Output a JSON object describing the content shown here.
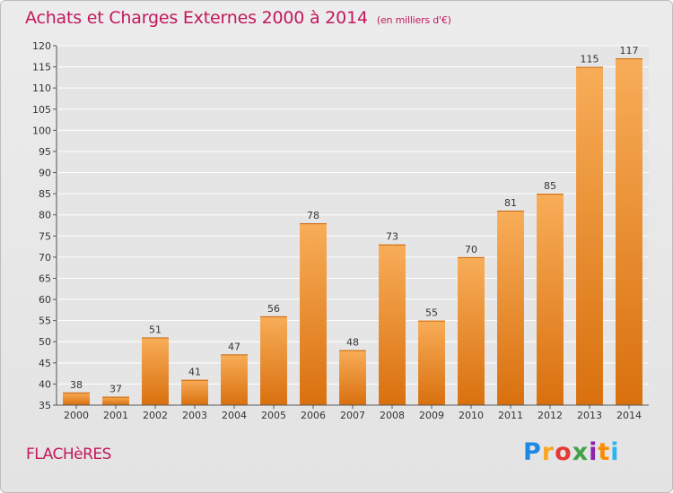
{
  "chart_data": {
    "type": "bar",
    "title": "Achats et Charges Externes 2000 à 2014",
    "subtitle": "(en milliers d'€)",
    "categories": [
      "2000",
      "2001",
      "2002",
      "2003",
      "2004",
      "2005",
      "2006",
      "2007",
      "2008",
      "2009",
      "2010",
      "2011",
      "2012",
      "2013",
      "2014"
    ],
    "values": [
      38,
      37,
      51,
      41,
      47,
      56,
      78,
      48,
      73,
      55,
      70,
      81,
      85,
      115,
      117
    ],
    "ylim": [
      35,
      120
    ],
    "yticks": [
      35,
      40,
      45,
      50,
      55,
      60,
      65,
      70,
      75,
      80,
      85,
      90,
      95,
      100,
      105,
      110,
      115,
      120
    ],
    "xlabel": "",
    "ylabel": "",
    "grid": true
  },
  "footer": {
    "commune": "FLACHèRES",
    "brand_letters": [
      "P",
      "r",
      "o",
      "x",
      "i",
      "t",
      "i"
    ],
    "brand_colors": [
      "#1e88e5",
      "#f9a825",
      "#e53935",
      "#43a047",
      "#8e24aa",
      "#fb8c00",
      "#29b6f6"
    ]
  },
  "colors": {
    "title": "#c2185b",
    "bar_light": "#f7a74f",
    "bar_dark": "#dd7410",
    "grid": "#ffffff",
    "plot_bg": "#e5e5e5"
  }
}
